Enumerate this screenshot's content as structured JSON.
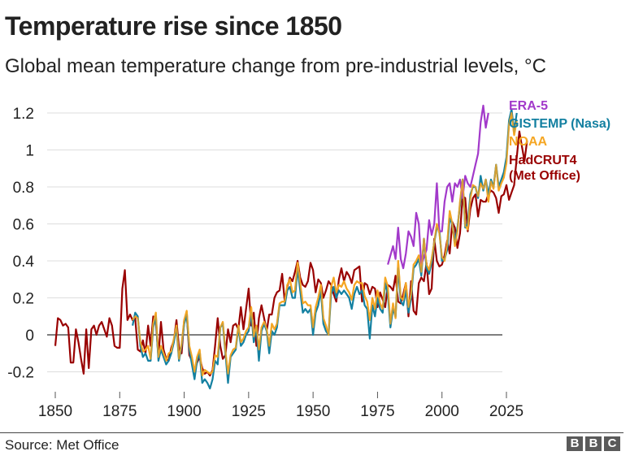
{
  "header": {
    "title": "Temperature rise since 1850",
    "subtitle": "Global mean temperature change from pre-industrial levels, °C"
  },
  "footer": {
    "source": "Source: Met Office",
    "logo_letters": [
      "B",
      "B",
      "C"
    ]
  },
  "chart_data": {
    "type": "line",
    "title": "Temperature rise since 1850",
    "subtitle": "Global mean temperature change from pre-industrial levels, °C",
    "xlabel": "",
    "ylabel": "°C",
    "xlim": [
      1850,
      2025
    ],
    "ylim": [
      -0.3,
      1.3
    ],
    "x_ticks": [
      1850,
      1875,
      1900,
      1925,
      1950,
      1975,
      2000,
      2025
    ],
    "x_tick_labels": [
      "1850",
      "1875",
      "1900",
      "1925",
      "1950",
      "1975",
      "2000",
      "2025"
    ],
    "y_ticks": [
      -0.2,
      0,
      0.2,
      0.4,
      0.6,
      0.8,
      1,
      1.2
    ],
    "y_tick_labels": [
      "-0.2",
      "0",
      "0.2",
      "0.4",
      "0.6",
      "0.8",
      "1",
      "1.2"
    ],
    "grid": true,
    "zero_line": true,
    "legend_position": "right",
    "series": [
      {
        "name": "HadCRUT4 (Met Office)",
        "legend_lines": [
          "HadCRUT4",
          "(Met Office)"
        ],
        "color": "#990000",
        "start_year": 1850,
        "values": [
          -0.06,
          0.09,
          0.08,
          0.05,
          0.06,
          0.04,
          -0.15,
          -0.15,
          0.03,
          -0.04,
          -0.13,
          -0.21,
          0.03,
          -0.18,
          0.03,
          0.05,
          0.0,
          0.05,
          0.07,
          0.03,
          -0.01,
          0.09,
          0.05,
          -0.06,
          -0.07,
          -0.07,
          0.25,
          0.35,
          0.08,
          0.11,
          0.08,
          0.09,
          -0.08,
          -0.09,
          -0.03,
          -0.1,
          0.05,
          -0.06,
          0.1,
          0.07,
          -0.12,
          0.07,
          -0.08,
          -0.13,
          -0.14,
          -0.07,
          -0.03,
          0.08,
          -0.07,
          -0.1,
          0.08,
          0.12,
          -0.11,
          -0.14,
          -0.2,
          -0.15,
          -0.12,
          -0.18,
          -0.21,
          -0.2,
          -0.22,
          -0.19,
          -0.06,
          0.09,
          -0.06,
          -0.13,
          -0.11,
          0.03,
          -0.04,
          0.05,
          0.06,
          0.03,
          0.15,
          0.03,
          0.14,
          0.25,
          0.05,
          0.12,
          -0.06,
          0.09,
          0.16,
          0.09,
          0.02,
          0.11,
          0.11,
          0.2,
          0.23,
          0.24,
          0.33,
          0.18,
          0.26,
          0.31,
          0.29,
          0.34,
          0.4,
          0.31,
          0.27,
          0.26,
          0.29,
          0.39,
          0.35,
          0.23,
          0.3,
          0.28,
          0.2,
          0.24,
          0.29,
          0.27,
          0.22,
          0.18,
          0.3,
          0.36,
          0.29,
          0.34,
          0.32,
          0.28,
          0.35,
          0.36,
          0.37,
          0.18,
          0.28,
          0.27,
          0.22,
          0.26,
          0.25,
          0.15,
          0.23,
          0.19,
          0.15,
          0.27,
          0.26,
          0.24,
          0.32,
          0.18,
          0.17,
          0.22,
          0.28,
          0.1,
          0.29,
          0.13,
          0.11,
          0.28,
          0.31,
          0.29,
          0.39,
          0.22,
          0.25,
          0.52,
          0.4,
          0.37,
          0.38,
          0.43,
          0.51,
          0.44,
          0.61,
          0.58,
          0.47,
          0.55,
          0.75,
          0.74,
          0.56,
          0.68,
          0.74,
          0.76,
          0.64,
          0.73,
          0.72,
          0.72,
          0.76,
          0.78,
          0.77,
          0.74,
          0.66,
          0.75,
          0.76,
          0.81,
          0.73,
          0.77,
          0.81,
          0.96,
          1.1,
          1.02,
          0.94,
          1.05
        ]
      },
      {
        "name": "NOAA",
        "legend_lines": [
          "NOAA"
        ],
        "color": "#f5a623",
        "start_year": 1880,
        "values": [
          0.08,
          0.1,
          0.09,
          -0.04,
          -0.09,
          -0.08,
          -0.06,
          -0.13,
          0.06,
          0.12,
          -0.12,
          -0.06,
          -0.1,
          -0.14,
          -0.1,
          -0.09,
          -0.02,
          0.05,
          -0.13,
          -0.05,
          0.08,
          0.13,
          -0.06,
          -0.12,
          -0.2,
          -0.12,
          -0.08,
          -0.22,
          -0.19,
          -0.2,
          -0.21,
          -0.2,
          -0.11,
          -0.12,
          0.04,
          0.07,
          -0.09,
          -0.21,
          -0.11,
          -0.08,
          -0.07,
          0.05,
          -0.04,
          -0.02,
          0.02,
          0.04,
          0.15,
          -0.01,
          0.05,
          -0.08,
          0.04,
          0.07,
          0.03,
          -0.06,
          0.06,
          0.03,
          0.06,
          0.17,
          0.18,
          0.18,
          0.27,
          0.3,
          0.23,
          0.24,
          0.39,
          0.28,
          0.17,
          0.18,
          0.16,
          0.16,
          0.04,
          0.15,
          0.2,
          0.27,
          0.09,
          0.05,
          0.0,
          0.26,
          0.31,
          0.23,
          0.27,
          0.26,
          0.29,
          0.25,
          0.23,
          0.19,
          0.27,
          0.29,
          0.28,
          0.28,
          0.21,
          0.18,
          0.08,
          0.2,
          0.14,
          0.24,
          0.17,
          0.14,
          0.31,
          0.26,
          0.06,
          0.17,
          0.09,
          0.4,
          0.2,
          0.19,
          0.28,
          0.15,
          0.22,
          0.38,
          0.4,
          0.43,
          0.34,
          0.52,
          0.38,
          0.35,
          0.41,
          0.5,
          0.6,
          0.55,
          0.42,
          0.4,
          0.49,
          0.67,
          0.6,
          0.48,
          0.56,
          0.72,
          0.84,
          0.59,
          0.57,
          0.74,
          0.81,
          0.8,
          0.75,
          0.82,
          0.79,
          0.84,
          0.72,
          0.83,
          0.79,
          0.92,
          0.78,
          0.82,
          0.85,
          0.93,
          1.14,
          1.2,
          1.08,
          1.16
        ]
      },
      {
        "name": "GISTEMP (Nasa)",
        "legend_lines": [
          "GISTEMP (Nasa)"
        ],
        "color": "#1380a1",
        "start_year": 1880,
        "values": [
          0.05,
          0.12,
          0.1,
          -0.06,
          -0.12,
          -0.1,
          -0.14,
          -0.14,
          0.04,
          0.1,
          -0.14,
          -0.08,
          -0.12,
          -0.16,
          -0.14,
          -0.1,
          -0.04,
          0.04,
          -0.14,
          -0.06,
          0.06,
          0.11,
          -0.08,
          -0.16,
          -0.24,
          -0.14,
          -0.1,
          -0.26,
          -0.24,
          -0.26,
          -0.29,
          -0.24,
          -0.14,
          -0.16,
          0.04,
          0.06,
          -0.1,
          -0.26,
          -0.12,
          -0.1,
          -0.08,
          0.04,
          -0.06,
          -0.04,
          0.0,
          0.02,
          0.12,
          -0.04,
          0.04,
          -0.14,
          0.02,
          0.06,
          0.02,
          -0.1,
          0.02,
          0.0,
          0.04,
          0.16,
          0.16,
          0.16,
          0.24,
          0.26,
          0.2,
          0.2,
          0.36,
          0.24,
          0.12,
          0.14,
          0.12,
          0.14,
          0.0,
          0.12,
          0.16,
          0.24,
          0.06,
          0.02,
          0.0,
          0.22,
          0.26,
          0.2,
          0.24,
          0.22,
          0.24,
          0.22,
          0.2,
          0.14,
          0.22,
          0.26,
          0.22,
          0.24,
          0.16,
          0.14,
          -0.02,
          0.16,
          0.1,
          0.2,
          0.14,
          0.12,
          0.28,
          0.22,
          0.04,
          0.14,
          0.1,
          0.36,
          0.18,
          0.16,
          0.24,
          0.12,
          0.2,
          0.36,
          0.38,
          0.41,
          0.32,
          0.52,
          0.36,
          0.33,
          0.39,
          0.5,
          0.58,
          0.57,
          0.4,
          0.41,
          0.46,
          0.63,
          0.6,
          0.5,
          0.58,
          0.7,
          0.84,
          0.58,
          0.6,
          0.76,
          0.8,
          0.8,
          0.74,
          0.86,
          0.78,
          0.84,
          0.76,
          0.84,
          0.8,
          0.92,
          0.8,
          0.84,
          0.88,
          0.96,
          1.16,
          1.22,
          1.1,
          1.2
        ]
      },
      {
        "name": "ERA-5",
        "legend_lines": [
          "ERA-5"
        ],
        "color": "#a239ca",
        "start_year": 1979,
        "values": [
          0.38,
          0.43,
          0.48,
          0.41,
          0.58,
          0.41,
          0.36,
          0.44,
          0.56,
          0.53,
          0.48,
          0.66,
          0.6,
          0.38,
          0.42,
          0.46,
          0.62,
          0.54,
          0.6,
          0.82,
          0.56,
          0.56,
          0.72,
          0.8,
          0.82,
          0.72,
          0.82,
          0.8,
          0.84,
          0.74,
          0.86,
          0.82,
          0.8,
          0.86,
          0.92,
          0.98,
          1.15,
          1.24,
          1.12,
          1.2
        ]
      }
    ]
  }
}
